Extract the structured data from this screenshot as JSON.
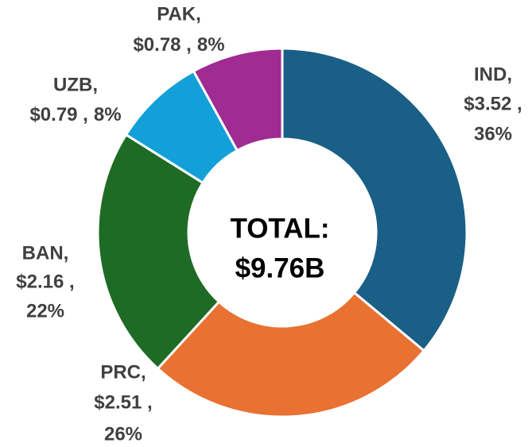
{
  "chart_data": {
    "type": "donut",
    "categories": [
      "IND,",
      "PRC,",
      "BAN,",
      "UZB,",
      "PAK,"
    ],
    "values": [
      3.52,
      2.51,
      2.16,
      0.79,
      0.78
    ],
    "value_labels": [
      "$3.52 ,",
      "$2.51 ,",
      "$2.16 ,",
      "$0.79 ,",
      "$0.78 ,"
    ],
    "percent_labels": [
      "36%",
      "26%",
      "22%",
      "8%",
      "8%"
    ],
    "colors": [
      "#1a5f85",
      "#e97132",
      "#1e6b25",
      "#13a0d8",
      "#a02b93"
    ],
    "center_text": [
      "TOTAL:",
      "$9.76B"
    ]
  }
}
